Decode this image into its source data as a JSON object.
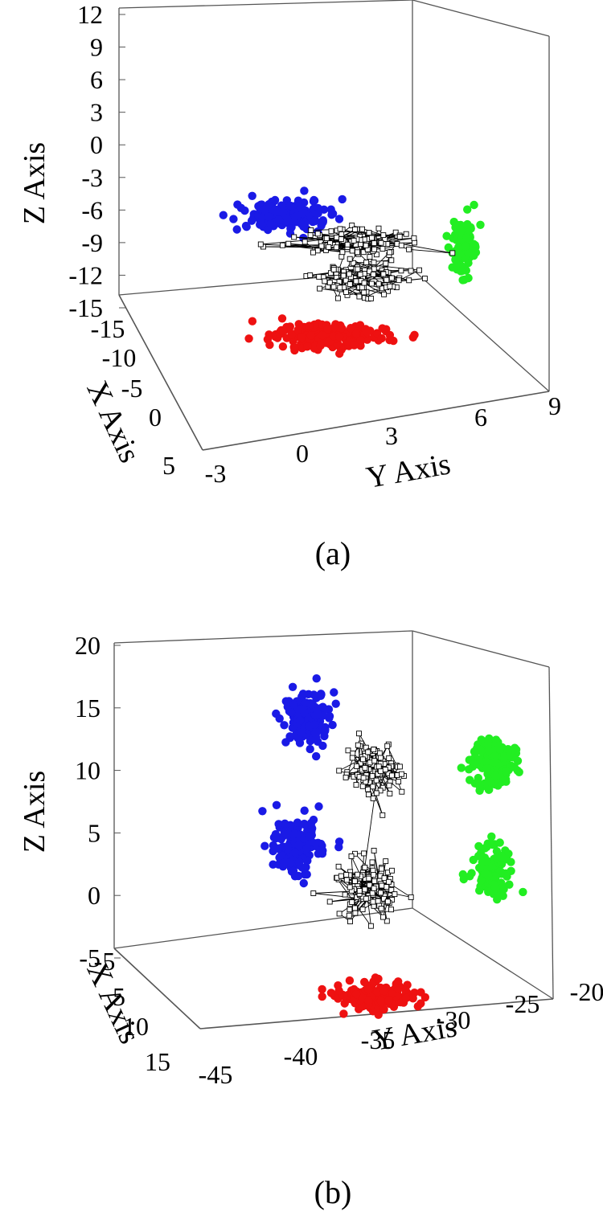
{
  "figure": {
    "captions": [
      "(a)",
      "(b)"
    ]
  },
  "colors": {
    "blue": "#1a1ae6",
    "green": "#22ee22",
    "red": "#ee1111",
    "trajectory": "#000000",
    "box": "#555555"
  },
  "chart_data": [
    {
      "type": "scatter",
      "subtype": "3d-scatter-with-projections",
      "caption": "(a)",
      "title": "",
      "xlabel": "X Axis",
      "ylabel": "Y Axis",
      "zlabel": "Z Axis",
      "xlim": [
        -15,
        5
      ],
      "ylim": [
        -3,
        9
      ],
      "zlim": [
        -15,
        12
      ],
      "x_ticks": [
        "-15",
        "-10",
        "-5",
        "0",
        "5"
      ],
      "y_ticks": [
        "-3",
        "0",
        "3",
        "6",
        "9"
      ],
      "z_ticks": [
        "12",
        "9",
        "6",
        "3",
        "0",
        "-3",
        "-6",
        "-9",
        "-12",
        "-15"
      ],
      "series": [
        {
          "role": "trajectory",
          "color": "black",
          "marker": "open-square-line",
          "clusters": [
            {
              "x": -5,
              "y": 1.0,
              "z": -8.5,
              "spread": 3.5,
              "count": 110
            },
            {
              "x": -5,
              "y": 1.8,
              "z": -12.0,
              "spread": 3.0,
              "count": 110
            }
          ]
        },
        {
          "role": "projection-yz",
          "color": "blue",
          "clusters": [
            {
              "y": 0.0,
              "z": -6.5,
              "count": 150
            }
          ]
        },
        {
          "role": "projection-xz",
          "color": "green",
          "clusters": [
            {
              "x": -10.0,
              "z": -8.0,
              "count": 90
            }
          ]
        },
        {
          "role": "projection-xy",
          "color": "red",
          "clusters": [
            {
              "x": -6.0,
              "y": 1.5,
              "count": 200
            }
          ]
        }
      ]
    },
    {
      "type": "scatter",
      "subtype": "3d-scatter-with-projections",
      "caption": "(b)",
      "title": "",
      "xlabel": "X Axis",
      "ylabel": "Y Axis",
      "zlabel": "Z Axis",
      "xlim": [
        -5,
        15
      ],
      "ylim": [
        -45,
        -20
      ],
      "zlim": [
        -5,
        20
      ],
      "x_ticks": [
        "-5",
        "5",
        "10",
        "15"
      ],
      "y_ticks": [
        "-45",
        "-40",
        "-35",
        "-30",
        "-25",
        "-20"
      ],
      "z_ticks": [
        "20",
        "15",
        "10",
        "5",
        "0",
        "-5"
      ],
      "series": [
        {
          "role": "trajectory",
          "color": "black",
          "marker": "open-square-line",
          "clusters": [
            {
              "x": 5,
              "y": -33,
              "z": 9.5,
              "spread": 3.5,
              "count": 120
            },
            {
              "x": 5,
              "y": -34,
              "z": 1.0,
              "spread": 3.5,
              "count": 120
            }
          ]
        },
        {
          "role": "projection-yz",
          "color": "blue",
          "clusters": [
            {
              "y": -38,
              "z": 13.0,
              "count": 160
            },
            {
              "y": -39,
              "z": 5.0,
              "count": 140
            }
          ]
        },
        {
          "role": "projection-xz",
          "color": "green",
          "clusters": [
            {
              "x": 5,
              "z": 11.0,
              "count": 150
            },
            {
              "x": 5,
              "z": 2.5,
              "count": 120
            }
          ]
        },
        {
          "role": "projection-xy",
          "color": "red",
          "clusters": [
            {
              "x": 8,
              "y": -33,
              "count": 200
            }
          ]
        }
      ]
    }
  ]
}
